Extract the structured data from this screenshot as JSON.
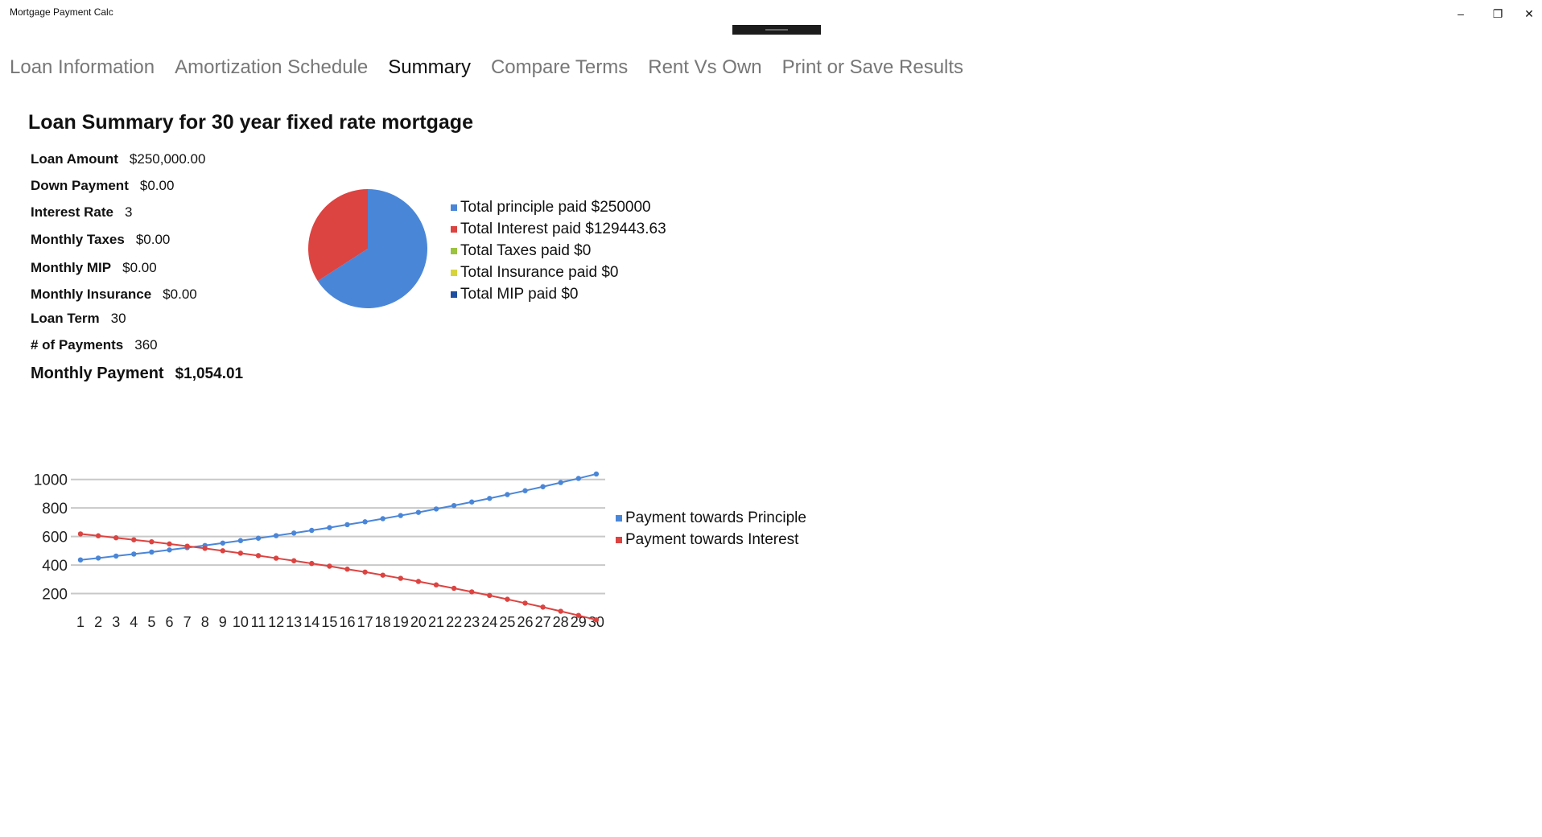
{
  "window": {
    "title": "Mortgage Payment Calc",
    "minimize_glyph": "–",
    "restore_glyph": "❐",
    "close_glyph": "✕"
  },
  "tabs": [
    {
      "label": "Loan Information",
      "active": false
    },
    {
      "label": "Amortization Schedule",
      "active": false
    },
    {
      "label": "Summary",
      "active": true
    },
    {
      "label": "Compare Terms",
      "active": false
    },
    {
      "label": "Rent Vs Own",
      "active": false
    },
    {
      "label": "Print or Save Results",
      "active": false
    }
  ],
  "summary": {
    "title": "Loan Summary for 30 year fixed rate mortgage",
    "loan_amount": {
      "label": "Loan Amount",
      "value": "$250,000.00"
    },
    "down_payment": {
      "label": "Down Payment",
      "value": "$0.00"
    },
    "interest_rate": {
      "label": "Interest Rate",
      "value": "3"
    },
    "monthly_taxes": {
      "label": "Monthly Taxes",
      "value": "$0.00"
    },
    "monthly_mip": {
      "label": "Monthly MIP",
      "value": "$0.00"
    },
    "monthly_insurance": {
      "label": "Monthly Insurance",
      "value": "$0.00"
    },
    "loan_term": {
      "label": "Loan Term",
      "value": "30"
    },
    "num_payments": {
      "label": "# of Payments",
      "value": "360"
    },
    "monthly_payment": {
      "label": "Monthly Payment",
      "value": "$1,054.01"
    }
  },
  "chart_data": [
    {
      "type": "pie",
      "series": [
        {
          "name": "Total principle paid $250000",
          "value": 250000,
          "color": "#4a86d8"
        },
        {
          "name": "Total Interest paid $129443.63",
          "value": 129443.63,
          "color": "#db4441"
        },
        {
          "name": "Total Taxes paid $0",
          "value": 0,
          "color": "#9bc33f"
        },
        {
          "name": "Total Insurance paid $0",
          "value": 0,
          "color": "#d7d43b"
        },
        {
          "name": "Total MIP paid $0",
          "value": 0,
          "color": "#1f4fa0"
        }
      ],
      "legend_position": "right"
    },
    {
      "type": "line",
      "x": [
        1,
        2,
        3,
        4,
        5,
        6,
        7,
        8,
        9,
        10,
        11,
        12,
        13,
        14,
        15,
        16,
        17,
        18,
        19,
        20,
        21,
        22,
        23,
        24,
        25,
        26,
        27,
        28,
        29,
        30
      ],
      "series": [
        {
          "name": "Payment towards Principle",
          "color": "#4a86d8",
          "values": [
            436,
            449,
            463,
            477,
            491,
            506,
            522,
            537,
            554,
            571,
            588,
            606,
            624,
            643,
            662,
            683,
            703,
            725,
            747,
            769,
            793,
            817,
            842,
            867,
            894,
            921,
            949,
            978,
            1007,
            1038
          ]
        },
        {
          "name": "Payment towards Interest",
          "color": "#db4441",
          "values": [
            618,
            605,
            591,
            577,
            563,
            548,
            532,
            517,
            500,
            483,
            466,
            448,
            430,
            411,
            392,
            371,
            351,
            329,
            307,
            285,
            261,
            237,
            212,
            187,
            160,
            133,
            105,
            76,
            47,
            16
          ]
        }
      ],
      "yticks": [
        200,
        400,
        600,
        800,
        1000
      ],
      "ylim": [
        0,
        1060
      ],
      "grid": true,
      "legend_position": "right"
    }
  ]
}
